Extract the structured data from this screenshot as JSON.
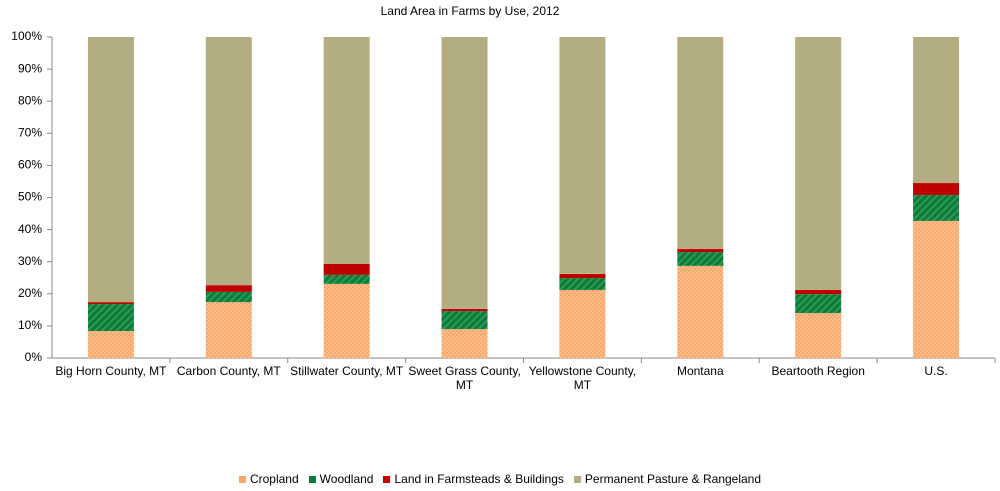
{
  "chart_data": {
    "type": "stacked_bar",
    "title": "Land Area in Farms by Use, 2012",
    "categories": [
      "Big Horn County, MT",
      "Carbon County, MT",
      "Stillwater County, MT",
      "Sweet Grass County, MT",
      "Yellowstone County, MT",
      "Montana",
      "Beartooth Region",
      "U.S."
    ],
    "series": [
      {
        "name": "Cropland",
        "color": "#f9a86a",
        "values": [
          8.4,
          17.4,
          23.1,
          9.0,
          21.2,
          28.7,
          14.0,
          42.7
        ]
      },
      {
        "name": "Woodland",
        "color": "#0b7a3a",
        "values": [
          8.4,
          3.2,
          2.8,
          5.6,
          3.7,
          4.3,
          5.9,
          8.1
        ]
      },
      {
        "name": "Land in Farmsteads & Buildings",
        "color": "#c00000",
        "values": [
          0.6,
          2.1,
          3.4,
          0.7,
          1.3,
          1.0,
          1.3,
          3.7
        ]
      },
      {
        "name": "Permanent Pasture & Rangeland",
        "color": "#b5ad82",
        "values": [
          82.6,
          77.3,
          70.7,
          84.7,
          73.8,
          66.0,
          78.8,
          45.5
        ]
      }
    ],
    "ylim": [
      0,
      100
    ],
    "yticks": [
      {
        "value": 0,
        "label": "0%"
      },
      {
        "value": 10,
        "label": "10%"
      },
      {
        "value": 20,
        "label": "20%"
      },
      {
        "value": 30,
        "label": "30%"
      },
      {
        "value": 40,
        "label": "40%"
      },
      {
        "value": 50,
        "label": "50%"
      },
      {
        "value": 60,
        "label": "60%"
      },
      {
        "value": 70,
        "label": "70%"
      },
      {
        "value": 80,
        "label": "80%"
      },
      {
        "value": 90,
        "label": "90%"
      },
      {
        "value": 100,
        "label": "100%"
      }
    ],
    "legend": "bottom"
  }
}
